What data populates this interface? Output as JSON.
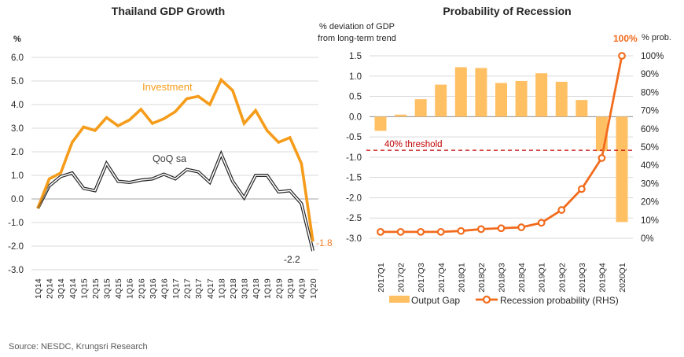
{
  "source_note": "Source: NESDC, Krungsri Research",
  "chart_data": [
    {
      "type": "line",
      "title": "Thailand GDP Growth",
      "ylabel": "%",
      "xlabel": "",
      "ylim": [
        -3.0,
        6.0
      ],
      "yticks": [
        6.0,
        5.0,
        4.0,
        3.0,
        2.0,
        1.0,
        0.0,
        -1.0,
        -2.0,
        -3.0
      ],
      "ytick_labels": [
        "6.0",
        "5.0",
        "4.0",
        "3.0",
        "2.0",
        "1.0",
        "0.0",
        "-1.0",
        "-2.0",
        "-3.0"
      ],
      "grid": true,
      "categories": [
        "1Q14",
        "2Q14",
        "3Q14",
        "4Q14",
        "1Q15",
        "2Q15",
        "3Q15",
        "4Q15",
        "1Q16",
        "2Q16",
        "3Q16",
        "4Q16",
        "1Q17",
        "2Q17",
        "3Q17",
        "4Q17",
        "1Q18",
        "2Q18",
        "3Q18",
        "4Q18",
        "1Q19",
        "2Q19",
        "3Q19",
        "4Q19",
        "1Q20"
      ],
      "series": [
        {
          "name": "Investment",
          "color": "#F59C1A",
          "values": [
            -0.4,
            0.85,
            1.1,
            2.4,
            3.05,
            2.9,
            3.45,
            3.1,
            3.35,
            3.8,
            3.2,
            3.4,
            3.7,
            4.25,
            4.35,
            4.0,
            5.05,
            4.6,
            3.2,
            3.75,
            2.9,
            2.4,
            2.6,
            1.5,
            -1.8
          ],
          "end_label": "-1.8"
        },
        {
          "name": "QoQ sa",
          "color": "#262626",
          "values": [
            -0.4,
            0.55,
            0.95,
            1.1,
            0.45,
            0.35,
            1.5,
            0.75,
            0.7,
            0.8,
            0.85,
            1.05,
            0.85,
            1.25,
            1.15,
            0.7,
            1.9,
            0.75,
            0.05,
            1.0,
            1.0,
            0.3,
            0.35,
            -0.2,
            -2.2
          ],
          "end_label": "-2.2"
        }
      ]
    },
    {
      "type": "bar+line",
      "title": "Probability of Recession",
      "ylabel_left": "% deviation of GDP from long-term trend",
      "ylabel_left_lines": [
        "% deviation of GDP",
        "from long-term trend"
      ],
      "ylabel_right": "% prob.",
      "ylim_left": [
        -3.0,
        1.5
      ],
      "yticks_left": [
        1.5,
        1.0,
        0.5,
        0.0,
        -0.5,
        -1.0,
        -1.5,
        -2.0,
        -2.5,
        -3.0
      ],
      "ytick_labels_left": [
        "1.5",
        "1.0",
        "0.5",
        "0.0",
        "-0.5",
        "-1.0",
        "-1.5",
        "-2.0",
        "-2.5",
        "-3.0"
      ],
      "ylim_right": [
        0,
        100
      ],
      "yticks_right": [
        100,
        90,
        80,
        70,
        60,
        50,
        40,
        30,
        20,
        10,
        0
      ],
      "ytick_labels_right": [
        "100%",
        "90%",
        "80%",
        "70%",
        "60%",
        "50%",
        "40%",
        "30%",
        "20%",
        "10%",
        "0%"
      ],
      "grid": true,
      "categories": [
        "2017Q1",
        "2017Q2",
        "2017Q3",
        "2017Q4",
        "2018Q1",
        "2018Q2",
        "2018Q3",
        "2018Q4",
        "2019Q1",
        "2019Q2",
        "2019Q3",
        "2019Q4",
        "2020Q1"
      ],
      "series": [
        {
          "name": "Output Gap",
          "type": "bar",
          "axis": "left",
          "color": "#FFC064",
          "values": [
            -0.35,
            0.05,
            0.43,
            0.79,
            1.22,
            1.2,
            0.83,
            0.88,
            1.07,
            0.86,
            0.41,
            -0.85,
            -2.6
          ]
        },
        {
          "name": "Recession probability (RHS)",
          "type": "line",
          "axis": "right",
          "color": "#F26B1D",
          "values": [
            3.5,
            3.5,
            3.5,
            3.5,
            4,
            5,
            5.5,
            6,
            8.5,
            15.5,
            27,
            44,
            100
          ],
          "end_label": "100%"
        }
      ],
      "threshold": {
        "label": "40% threshold",
        "value_left_axis": -0.83,
        "color": "#C00000"
      },
      "legend": {
        "placement": "bottom",
        "items": [
          "Output Gap",
          "Recession probability (RHS)"
        ]
      }
    }
  ]
}
